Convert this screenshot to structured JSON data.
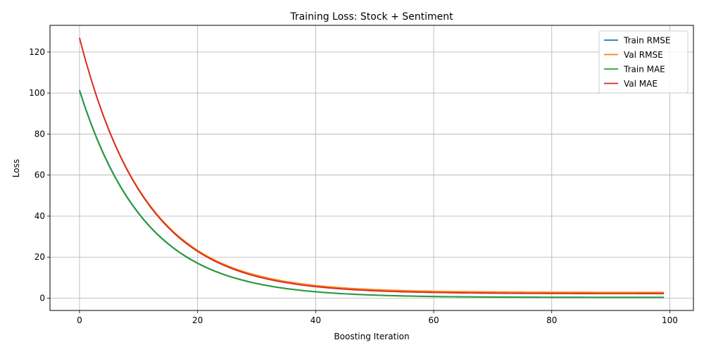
{
  "chart_data": {
    "type": "line",
    "title": "Training Loss: Stock + Sentiment",
    "xlabel": "Boosting Iteration",
    "ylabel": "Loss",
    "xlim": [
      -5,
      104
    ],
    "ylim": [
      -6,
      133
    ],
    "xticks": [
      0,
      20,
      40,
      60,
      80,
      100
    ],
    "yticks": [
      0,
      20,
      40,
      60,
      80,
      100,
      120
    ],
    "grid": true,
    "legend_position": "top-right",
    "series": [
      {
        "name": "Train RMSE",
        "color": "#1f77b4",
        "start": 101.5,
        "end": 0.4,
        "rate": 0.09
      },
      {
        "name": "Val RMSE",
        "color": "#ff7f0e",
        "start": 127.0,
        "end": 2.8,
        "rate": 0.09
      },
      {
        "name": "Train MAE",
        "color": "#2ca02c",
        "start": 101.0,
        "end": 0.3,
        "rate": 0.09
      },
      {
        "name": "Val MAE",
        "color": "#d62728",
        "start": 126.8,
        "end": 2.2,
        "rate": 0.09
      }
    ],
    "x_range": [
      0,
      99
    ]
  }
}
